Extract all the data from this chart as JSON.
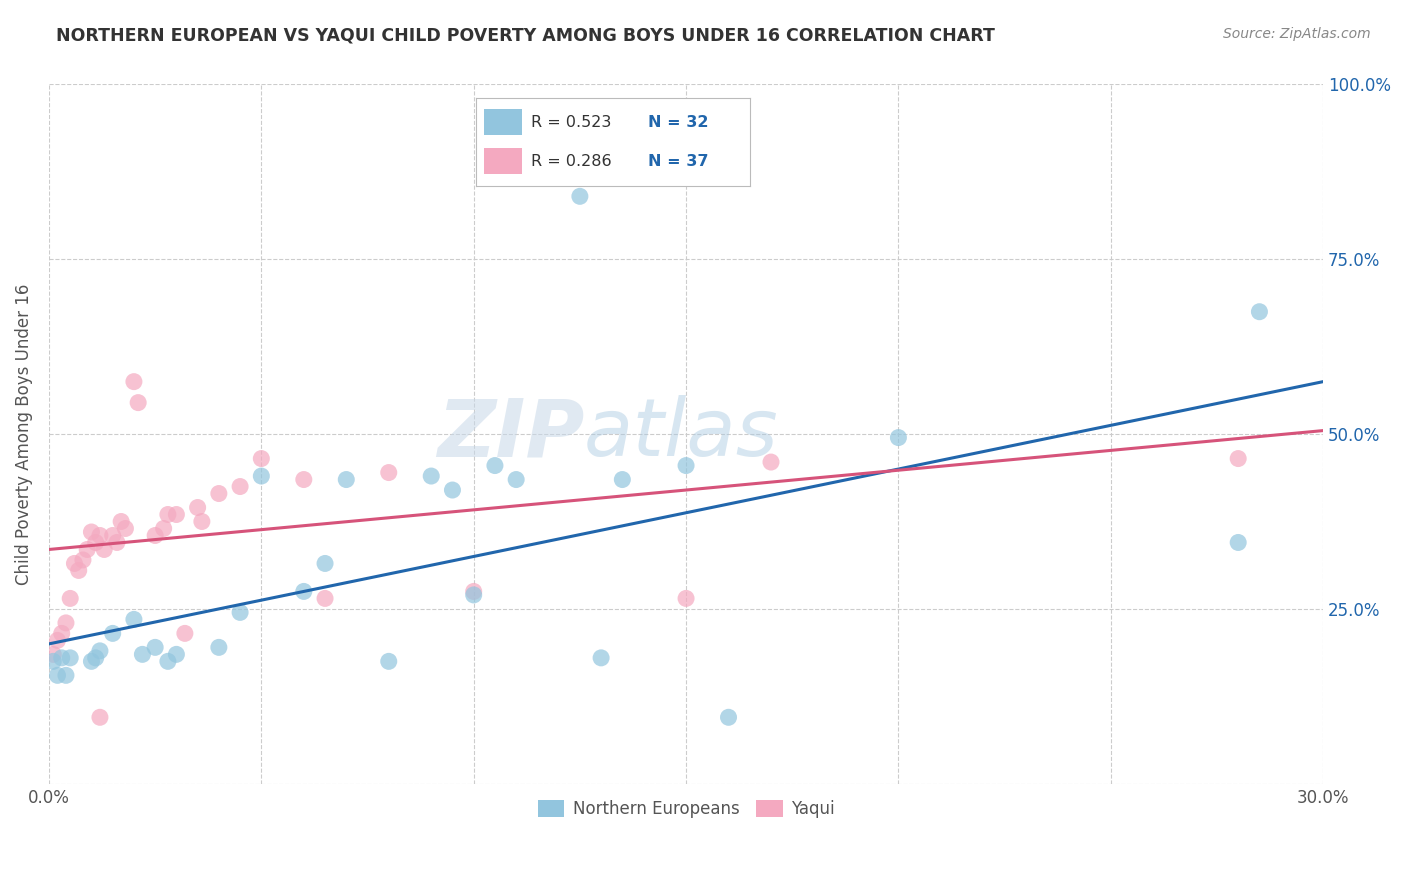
{
  "title": "NORTHERN EUROPEAN VS YAQUI CHILD POVERTY AMONG BOYS UNDER 16 CORRELATION CHART",
  "source": "Source: ZipAtlas.com",
  "ylabel": "Child Poverty Among Boys Under 16",
  "xlim": [
    0.0,
    0.3
  ],
  "ylim": [
    0.0,
    1.0
  ],
  "xticks": [
    0.0,
    0.05,
    0.1,
    0.15,
    0.2,
    0.25,
    0.3
  ],
  "yticks": [
    0.0,
    0.25,
    0.5,
    0.75,
    1.0
  ],
  "right_ytick_labels": [
    "",
    "25.0%",
    "50.0%",
    "75.0%",
    "100.0%"
  ],
  "xtick_labels": [
    "0.0%",
    "",
    "",
    "",
    "",
    "",
    "30.0%"
  ],
  "background_color": "#ffffff",
  "grid_color": "#cccccc",
  "watermark_zip": "ZIP",
  "watermark_atlas": "atlas",
  "blue_color": "#92c5de",
  "pink_color": "#f4a9c0",
  "blue_line_color": "#2166ac",
  "pink_line_color": "#d6537a",
  "title_color": "#333333",
  "source_color": "#888888",
  "right_label_color": "#2166ac",
  "blue_scatter": [
    [
      0.001,
      0.175
    ],
    [
      0.002,
      0.155
    ],
    [
      0.003,
      0.18
    ],
    [
      0.004,
      0.155
    ],
    [
      0.005,
      0.18
    ],
    [
      0.01,
      0.175
    ],
    [
      0.011,
      0.18
    ],
    [
      0.012,
      0.19
    ],
    [
      0.015,
      0.215
    ],
    [
      0.02,
      0.235
    ],
    [
      0.022,
      0.185
    ],
    [
      0.025,
      0.195
    ],
    [
      0.028,
      0.175
    ],
    [
      0.03,
      0.185
    ],
    [
      0.04,
      0.195
    ],
    [
      0.045,
      0.245
    ],
    [
      0.05,
      0.44
    ],
    [
      0.06,
      0.275
    ],
    [
      0.065,
      0.315
    ],
    [
      0.07,
      0.435
    ],
    [
      0.08,
      0.175
    ],
    [
      0.09,
      0.44
    ],
    [
      0.095,
      0.42
    ],
    [
      0.1,
      0.27
    ],
    [
      0.105,
      0.455
    ],
    [
      0.11,
      0.435
    ],
    [
      0.13,
      0.18
    ],
    [
      0.135,
      0.435
    ],
    [
      0.15,
      0.455
    ],
    [
      0.2,
      0.495
    ],
    [
      0.28,
      0.345
    ],
    [
      0.285,
      0.675
    ],
    [
      0.125,
      0.84
    ],
    [
      0.16,
      0.095
    ]
  ],
  "pink_scatter": [
    [
      0.001,
      0.185
    ],
    [
      0.002,
      0.205
    ],
    [
      0.003,
      0.215
    ],
    [
      0.004,
      0.23
    ],
    [
      0.005,
      0.265
    ],
    [
      0.006,
      0.315
    ],
    [
      0.007,
      0.305
    ],
    [
      0.008,
      0.32
    ],
    [
      0.009,
      0.335
    ],
    [
      0.01,
      0.36
    ],
    [
      0.011,
      0.345
    ],
    [
      0.012,
      0.355
    ],
    [
      0.013,
      0.335
    ],
    [
      0.015,
      0.355
    ],
    [
      0.016,
      0.345
    ],
    [
      0.017,
      0.375
    ],
    [
      0.018,
      0.365
    ],
    [
      0.02,
      0.575
    ],
    [
      0.021,
      0.545
    ],
    [
      0.025,
      0.355
    ],
    [
      0.027,
      0.365
    ],
    [
      0.028,
      0.385
    ],
    [
      0.03,
      0.385
    ],
    [
      0.032,
      0.215
    ],
    [
      0.035,
      0.395
    ],
    [
      0.036,
      0.375
    ],
    [
      0.04,
      0.415
    ],
    [
      0.045,
      0.425
    ],
    [
      0.05,
      0.465
    ],
    [
      0.06,
      0.435
    ],
    [
      0.065,
      0.265
    ],
    [
      0.08,
      0.445
    ],
    [
      0.1,
      0.275
    ],
    [
      0.15,
      0.265
    ],
    [
      0.17,
      0.46
    ],
    [
      0.28,
      0.465
    ],
    [
      0.012,
      0.095
    ]
  ],
  "blue_line_x": [
    0.0,
    0.3
  ],
  "blue_line_y": [
    0.2,
    0.575
  ],
  "pink_line_x": [
    0.0,
    0.3
  ],
  "pink_line_y": [
    0.335,
    0.505
  ]
}
